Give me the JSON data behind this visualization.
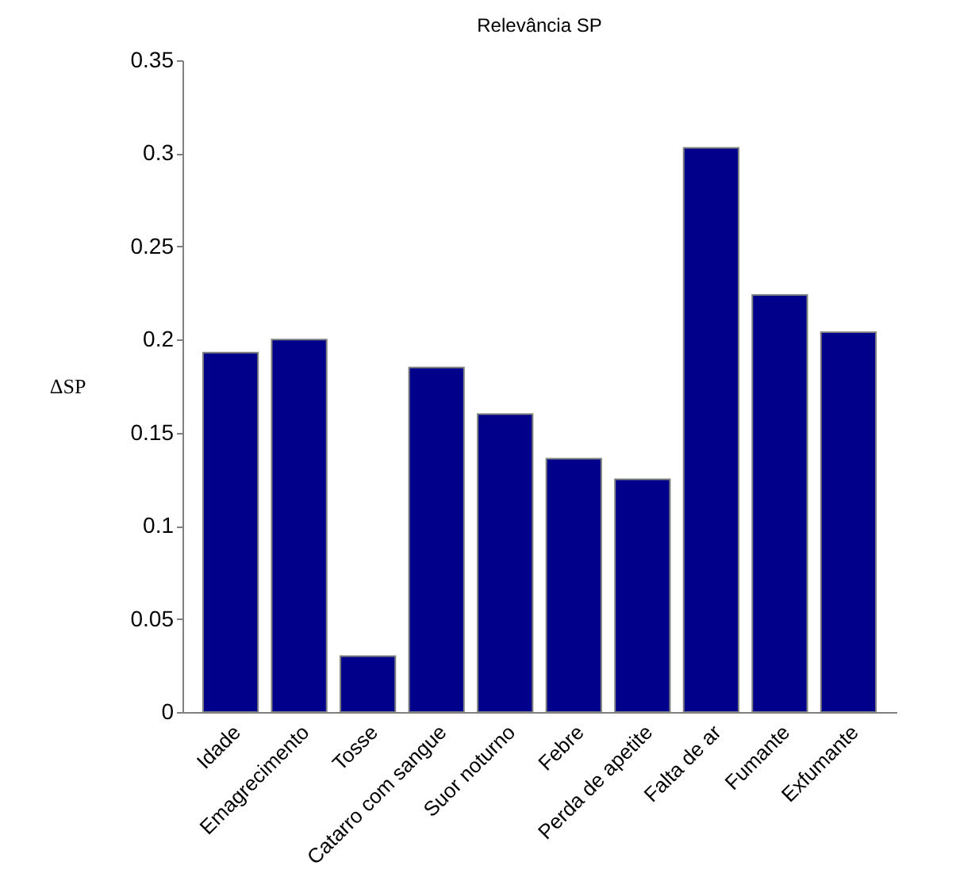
{
  "chart_data": {
    "type": "bar",
    "title": "Relevância SP",
    "ylabel": "ΔSP",
    "categories": [
      "Idade",
      "Emagrecimento",
      "Tosse",
      "Catarro com sangue",
      "Suor noturno",
      "Febre",
      "Perda de apetite",
      "Falta de ar",
      "Fumante",
      "Exfumante"
    ],
    "values": [
      0.193,
      0.2,
      0.03,
      0.185,
      0.16,
      0.136,
      0.125,
      0.303,
      0.224,
      0.204
    ],
    "color": "#00008b",
    "ylim": [
      0,
      0.35
    ],
    "yticks": [
      0,
      0.05,
      0.1,
      0.15,
      0.2,
      0.25,
      0.3,
      0.35
    ],
    "grid": false
  }
}
